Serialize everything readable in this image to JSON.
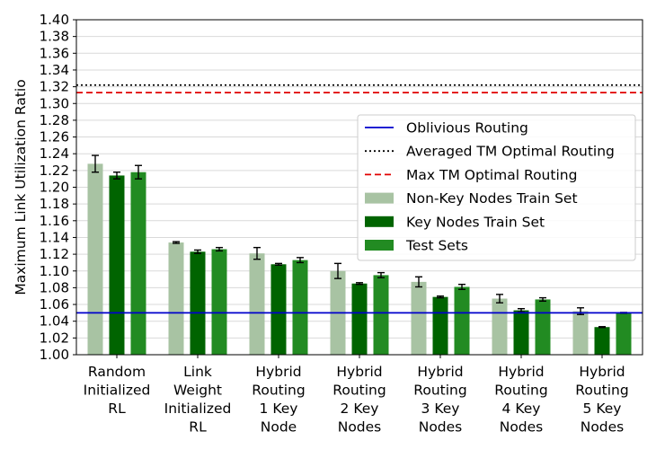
{
  "chart_data": {
    "type": "bar",
    "ylabel": "Maximum Link Utilization Ratio",
    "xlabel": "",
    "ylim": [
      1.0,
      1.4
    ],
    "yticks": [
      "1.00",
      "1.02",
      "1.04",
      "1.06",
      "1.08",
      "1.10",
      "1.12",
      "1.14",
      "1.16",
      "1.18",
      "1.20",
      "1.22",
      "1.24",
      "1.26",
      "1.28",
      "1.30",
      "1.32",
      "1.34",
      "1.36",
      "1.38",
      "1.40"
    ],
    "grid": "horizontal",
    "legend_position": "center-right",
    "categories": [
      [
        "Random",
        "Initialized",
        "RL"
      ],
      [
        "Link",
        "Weight",
        "Initialized",
        "RL"
      ],
      [
        "Hybrid",
        "Routing",
        "1 Key",
        "Node"
      ],
      [
        "Hybrid",
        "Routing",
        "2 Key",
        "Nodes"
      ],
      [
        "Hybrid",
        "Routing",
        "3 Key",
        "Nodes"
      ],
      [
        "Hybrid",
        "Routing",
        "4 Key",
        "Nodes"
      ],
      [
        "Hybrid",
        "Routing",
        "5 Key",
        "Nodes"
      ]
    ],
    "series": [
      {
        "name": "Non-Key Nodes Train Set",
        "color": "#a8c3a3",
        "values": [
          1.228,
          1.134,
          1.121,
          1.1,
          1.087,
          1.067,
          1.052
        ],
        "errors": [
          0.01,
          0.001,
          0.007,
          0.009,
          0.006,
          0.005,
          0.004
        ]
      },
      {
        "name": "Key Nodes Train Set",
        "color": "#006400",
        "values": [
          1.214,
          1.123,
          1.108,
          1.085,
          1.069,
          1.053,
          1.033
        ],
        "errors": [
          0.004,
          0.002,
          0.001,
          0.001,
          0.001,
          0.002,
          0.0005
        ]
      },
      {
        "name": "Test Sets",
        "color": "#228b22",
        "values": [
          1.218,
          1.126,
          1.113,
          1.095,
          1.081,
          1.066,
          1.05
        ],
        "errors": [
          0.008,
          0.002,
          0.003,
          0.003,
          0.003,
          0.002,
          0.0005
        ]
      }
    ],
    "reference_lines": [
      {
        "name": "Oblivious Routing",
        "value": 1.05,
        "color": "#0000cc",
        "style": "solid"
      },
      {
        "name": "Averaged TM Optimal Routing",
        "value": 1.322,
        "color": "#000000",
        "style": "dotted"
      },
      {
        "name": "Max TM Optimal Routing",
        "value": 1.313,
        "color": "#e00000",
        "style": "dashed"
      }
    ],
    "legend_order": [
      "Oblivious Routing",
      "Averaged TM Optimal Routing",
      "Max TM Optimal Routing",
      "Non-Key Nodes Train Set",
      "Key Nodes Train Set",
      "Test Sets"
    ]
  }
}
